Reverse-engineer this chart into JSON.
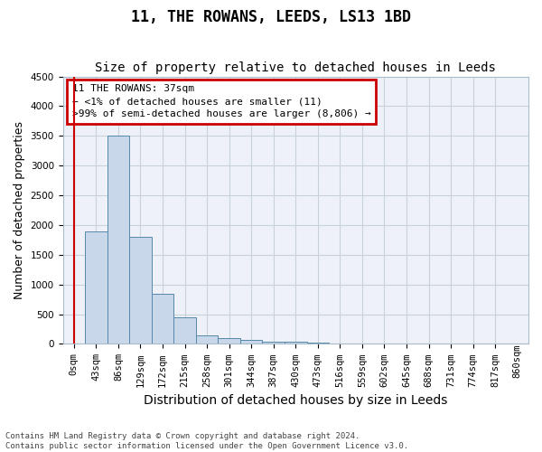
{
  "title": "11, THE ROWANS, LEEDS, LS13 1BD",
  "subtitle": "Size of property relative to detached houses in Leeds",
  "xlabel": "Distribution of detached houses by size in Leeds",
  "ylabel": "Number of detached properties",
  "bar_values": [
    11,
    1900,
    3500,
    1800,
    850,
    450,
    150,
    100,
    60,
    40,
    30,
    15,
    8,
    5,
    3,
    2,
    1,
    1,
    0,
    0
  ],
  "bar_labels": [
    "0sqm",
    "43sqm",
    "86sqm",
    "129sqm",
    "172sqm",
    "215sqm",
    "258sqm",
    "301sqm",
    "344sqm",
    "387sqm",
    "430sqm",
    "473sqm",
    "516sqm",
    "559sqm",
    "602sqm",
    "645sqm",
    "688sqm",
    "731sqm",
    "774sqm",
    "817sqm"
  ],
  "extra_label": "860sqm",
  "bar_color": "#c8d8ea",
  "bar_edge_color": "#5588aa",
  "annotation_text": "11 THE ROWANS: 37sqm\n← <1% of detached houses are smaller (11)\n>99% of semi-detached houses are larger (8,806) →",
  "annotation_box_color": "#ffffff",
  "annotation_box_edge_color": "#cc0000",
  "vline_color": "#cc0000",
  "ylim": [
    0,
    4500
  ],
  "yticks": [
    0,
    500,
    1000,
    1500,
    2000,
    2500,
    3000,
    3500,
    4000,
    4500
  ],
  "grid_color": "#c8d0d8",
  "bg_color": "#eef2f8",
  "footer_text": "Contains HM Land Registry data © Crown copyright and database right 2024.\nContains public sector information licensed under the Open Government Licence v3.0.",
  "title_fontsize": 12,
  "subtitle_fontsize": 10,
  "tick_fontsize": 7.5,
  "ylabel_fontsize": 9,
  "xlabel_fontsize": 10
}
